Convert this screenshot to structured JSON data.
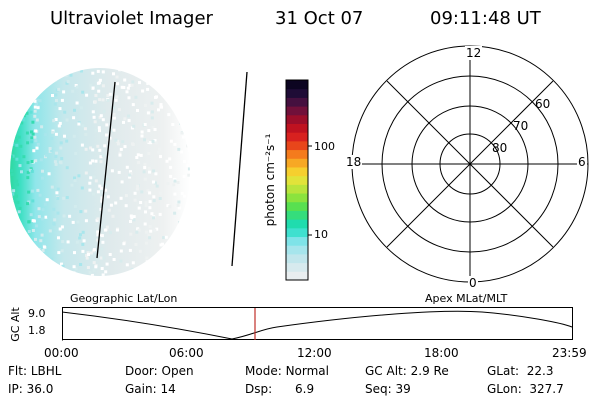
{
  "header": {
    "instrument": "Ultraviolet Imager",
    "date": "31 Oct 07",
    "time": "09:11:48 UT"
  },
  "colorbar": {
    "unit_label": "photon cm⁻²s⁻¹",
    "tick_labels": [
      "100",
      "10"
    ],
    "colors": [
      "#e9eef0",
      "#d7eaee",
      "#c1e6ec",
      "#a6e5ec",
      "#7fe3e8",
      "#3fe0cf",
      "#20dcae",
      "#35dd7c",
      "#58e050",
      "#8be33e",
      "#b9e43c",
      "#e1e33a",
      "#f6cf2e",
      "#f7a824",
      "#f47b1d",
      "#e8461b",
      "#d8211f",
      "#bf1220",
      "#9c0e2a",
      "#71103a",
      "#45103f",
      "#1f0c36",
      "#0c0521"
    ]
  },
  "polar_plot": {
    "labels": {
      "top": "12",
      "bottom": "0",
      "left": "18",
      "right": "6",
      "ring_60": "60",
      "ring_70": "70",
      "ring_80": "80"
    }
  },
  "timeline": {
    "axis_label": "GC Alt",
    "y_ticks": [
      "9.0",
      "1.8"
    ],
    "left_title": "Geographic Lat/Lon",
    "right_title": "Apex  MLat/MLT",
    "x_ticks": [
      "00:00",
      "06:00",
      "12:00",
      "18:00",
      "23:59"
    ]
  },
  "status": {
    "row1": [
      {
        "label": "Flt:",
        "value": "LBHL"
      },
      {
        "label": "Door:",
        "value": "Open"
      },
      {
        "label": "Mode:",
        "value": "Normal"
      },
      {
        "label": "GC Alt:",
        "value": "2.9 Re"
      },
      {
        "label": "GLat:",
        "value": "22.3"
      }
    ],
    "row2": [
      {
        "label": "IP:",
        "value": "36.0"
      },
      {
        "label": "Gain:",
        "value": "14"
      },
      {
        "label": "Dsp:",
        "value": "6.9"
      },
      {
        "label": "Seq:",
        "value": "39"
      },
      {
        "label": "GLon:",
        "value": "327.7"
      }
    ]
  }
}
